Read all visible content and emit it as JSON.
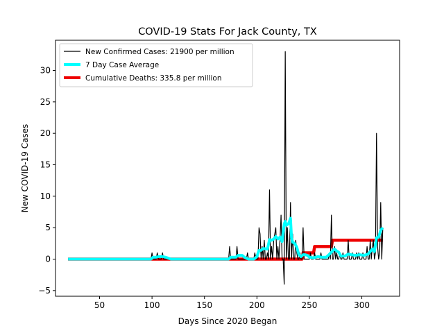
{
  "chart_data": {
    "type": "line",
    "title": "COVID-19 Stats For Jack County, TX",
    "xlabel": "Days Since 2020 Began",
    "ylabel": "New COVID-19 Cases",
    "xlim": [
      8,
      336
    ],
    "ylim": [
      -5.9,
      34.8
    ],
    "xticks": [
      50,
      100,
      150,
      200,
      250,
      300
    ],
    "yticks": [
      -5,
      0,
      5,
      10,
      15,
      20,
      25,
      30
    ],
    "grid": false,
    "legend_position": "top-left",
    "colors": {
      "new_cases": "#000000",
      "avg": "#00ffff",
      "deaths": "#ee0000"
    },
    "series": [
      {
        "name": "New Confirmed Cases: 21900 per million",
        "style": "line",
        "points": [
          [
            20,
            0
          ],
          [
            99,
            0
          ],
          [
            100,
            1
          ],
          [
            101,
            0
          ],
          [
            104,
            0
          ],
          [
            105,
            1
          ],
          [
            106,
            0
          ],
          [
            109,
            0
          ],
          [
            110,
            1
          ],
          [
            111,
            0
          ],
          [
            118,
            0
          ],
          [
            173,
            0
          ],
          [
            174,
            2
          ],
          [
            175,
            0
          ],
          [
            180,
            0
          ],
          [
            181,
            2
          ],
          [
            182,
            0
          ],
          [
            190,
            0
          ],
          [
            191,
            1
          ],
          [
            192,
            0
          ],
          [
            197,
            0
          ],
          [
            198,
            1
          ],
          [
            199,
            0
          ],
          [
            201,
            0
          ],
          [
            202,
            5
          ],
          [
            203,
            4
          ],
          [
            204,
            0
          ],
          [
            205,
            2
          ],
          [
            206,
            0
          ],
          [
            207,
            3
          ],
          [
            208,
            0
          ],
          [
            209,
            0
          ],
          [
            210,
            1
          ],
          [
            211,
            0
          ],
          [
            212,
            11
          ],
          [
            213,
            0
          ],
          [
            214,
            2
          ],
          [
            215,
            0
          ],
          [
            216,
            3
          ],
          [
            217,
            4
          ],
          [
            218,
            5
          ],
          [
            219,
            0
          ],
          [
            220,
            2
          ],
          [
            221,
            0
          ],
          [
            222,
            3
          ],
          [
            223,
            7
          ],
          [
            224,
            0
          ],
          [
            225,
            0
          ],
          [
            226,
            -4
          ],
          [
            227,
            33
          ],
          [
            228,
            0
          ],
          [
            229,
            5
          ],
          [
            230,
            0
          ],
          [
            231,
            0
          ],
          [
            232,
            9
          ],
          [
            233,
            0
          ],
          [
            234,
            4
          ],
          [
            235,
            0
          ],
          [
            236,
            0
          ],
          [
            237,
            3
          ],
          [
            238,
            1
          ],
          [
            239,
            0
          ],
          [
            240,
            0
          ],
          [
            241,
            1
          ],
          [
            242,
            0
          ],
          [
            243,
            0
          ],
          [
            244,
            5
          ],
          [
            245,
            0
          ],
          [
            250,
            0
          ],
          [
            251,
            1
          ],
          [
            252,
            0
          ],
          [
            254,
            0
          ],
          [
            255,
            1
          ],
          [
            256,
            0
          ],
          [
            260,
            0
          ],
          [
            261,
            1
          ],
          [
            262,
            0
          ],
          [
            268,
            0
          ],
          [
            269,
            1
          ],
          [
            270,
            0
          ],
          [
            271,
            7
          ],
          [
            272,
            0
          ],
          [
            273,
            0
          ],
          [
            274,
            2
          ],
          [
            275,
            0
          ],
          [
            276,
            1
          ],
          [
            277,
            0
          ],
          [
            278,
            0
          ],
          [
            279,
            1
          ],
          [
            280,
            0
          ],
          [
            281,
            0
          ],
          [
            282,
            1
          ],
          [
            283,
            0
          ],
          [
            286,
            0
          ],
          [
            287,
            3
          ],
          [
            288,
            0
          ],
          [
            290,
            0
          ],
          [
            291,
            1
          ],
          [
            292,
            0
          ],
          [
            294,
            0
          ],
          [
            295,
            1
          ],
          [
            296,
            0
          ],
          [
            297,
            1
          ],
          [
            298,
            0
          ],
          [
            300,
            0
          ],
          [
            301,
            1
          ],
          [
            302,
            0
          ],
          [
            304,
            0
          ],
          [
            305,
            2
          ],
          [
            306,
            0
          ],
          [
            307,
            0
          ],
          [
            308,
            3
          ],
          [
            309,
            0
          ],
          [
            310,
            2
          ],
          [
            311,
            3
          ],
          [
            312,
            0
          ],
          [
            313,
            1
          ],
          [
            314,
            20
          ],
          [
            315,
            2
          ],
          [
            316,
            0
          ],
          [
            317,
            1
          ],
          [
            318,
            9
          ],
          [
            319,
            0
          ],
          [
            320,
            5
          ]
        ]
      },
      {
        "name": "7 Day Case Average",
        "style": "line",
        "points": [
          [
            20,
            0
          ],
          [
            99,
            0
          ],
          [
            101,
            0.3
          ],
          [
            104,
            0.3
          ],
          [
            106,
            0.4
          ],
          [
            110,
            0.4
          ],
          [
            113,
            0.3
          ],
          [
            118,
            0
          ],
          [
            173,
            0
          ],
          [
            175,
            0.3
          ],
          [
            180,
            0.3
          ],
          [
            182,
            0.6
          ],
          [
            186,
            0.6
          ],
          [
            188,
            0.3
          ],
          [
            192,
            0
          ],
          [
            197,
            0
          ],
          [
            200,
            0.4
          ],
          [
            202,
            1.4
          ],
          [
            204,
            1.4
          ],
          [
            206,
            1.7
          ],
          [
            210,
            1.6
          ],
          [
            212,
            3.1
          ],
          [
            214,
            3
          ],
          [
            216,
            3.2
          ],
          [
            218,
            3.6
          ],
          [
            220,
            3.2
          ],
          [
            222,
            3.5
          ],
          [
            224,
            2.8
          ],
          [
            226,
            5.6
          ],
          [
            227,
            6
          ],
          [
            228,
            5.4
          ],
          [
            230,
            5.6
          ],
          [
            231,
            6
          ],
          [
            232,
            6.5
          ],
          [
            233,
            3.4
          ],
          [
            234,
            2.7
          ],
          [
            236,
            2.5
          ],
          [
            238,
            1.9
          ],
          [
            240,
            0.7
          ],
          [
            242,
            0.4
          ],
          [
            244,
            0.7
          ],
          [
            246,
            0.7
          ],
          [
            248,
            0.6
          ],
          [
            250,
            0.3
          ],
          [
            254,
            0.2
          ],
          [
            258,
            0.4
          ],
          [
            262,
            0.3
          ],
          [
            266,
            0.3
          ],
          [
            268,
            0.6
          ],
          [
            271,
            1.1
          ],
          [
            274,
            1.6
          ],
          [
            276,
            1.3
          ],
          [
            278,
            1.1
          ],
          [
            280,
            0.5
          ],
          [
            284,
            0.5
          ],
          [
            287,
            0.8
          ],
          [
            290,
            0.7
          ],
          [
            294,
            0.6
          ],
          [
            298,
            0.7
          ],
          [
            302,
            0.6
          ],
          [
            306,
            0.8
          ],
          [
            310,
            1.6
          ],
          [
            312,
            1.2
          ],
          [
            314,
            3.4
          ],
          [
            316,
            3.5
          ],
          [
            318,
            4.6
          ],
          [
            320,
            5
          ]
        ]
      },
      {
        "name": "Cumulative Deaths: 335.8 per million",
        "style": "step",
        "points": [
          [
            20,
            0
          ],
          [
            243,
            0
          ],
          [
            244,
            1
          ],
          [
            254,
            1
          ],
          [
            255,
            2
          ],
          [
            271,
            2
          ],
          [
            272,
            3
          ],
          [
            320,
            3
          ]
        ]
      }
    ]
  }
}
